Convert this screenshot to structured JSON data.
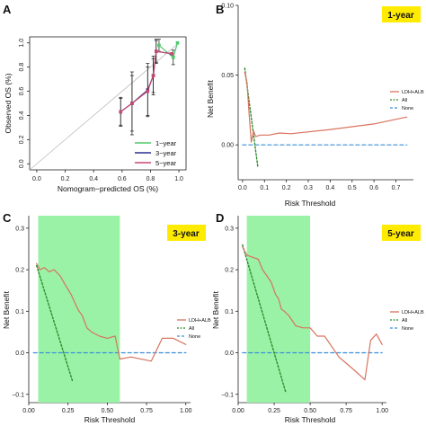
{
  "colors": {
    "ldh_alb": "#d9735f",
    "all": "#2e8b2e",
    "none": "#3a8fd9",
    "highlight": "#9af2a6",
    "year_box": "#ffeb00",
    "ideal_line": "#bdbdbd",
    "cal_1year": "#4fc86a",
    "cal_3year": "#2b2b8f",
    "cal_5year": "#c74a72"
  },
  "chart_data": [
    {
      "panel": "A",
      "type": "line",
      "xlabel": "Nomogram−predicted OS (%)",
      "ylabel": "Observed OS (%)",
      "xlim": [
        -0.05,
        1.05
      ],
      "ylim": [
        -0.05,
        1.05
      ],
      "xticks": [
        "0.0",
        "0.2",
        "0.4",
        "0.6",
        "0.8",
        "1.0"
      ],
      "yticks": [
        "0.0",
        "0.2",
        "0.4",
        "0.6",
        "0.8",
        "1.0"
      ],
      "legend_position": "bottom-right",
      "series": [
        {
          "name": "1−year",
          "x": [
            0.86,
            0.96,
            0.99
          ],
          "y": [
            0.98,
            0.88,
            1.0
          ],
          "err": [
            0.05,
            0.06,
            0.0
          ]
        },
        {
          "name": "3−year",
          "x": [
            0.59,
            0.67,
            0.78,
            0.82,
            0.84,
            0.95
          ],
          "y": [
            0.43,
            0.5,
            0.61,
            0.73,
            0.93,
            0.91
          ],
          "err": [
            0.12,
            0.23,
            0.22,
            0.14,
            0.09,
            0.0
          ]
        },
        {
          "name": "5−year",
          "x": [
            0.59,
            0.67,
            0.78,
            0.82,
            0.84,
            0.95
          ],
          "y": [
            0.43,
            0.5,
            0.6,
            0.73,
            0.93,
            0.91
          ],
          "err": [
            0.11,
            0.26,
            0.2,
            0.16,
            0.1,
            0.0
          ]
        }
      ]
    },
    {
      "panel": "B",
      "type": "line",
      "badge": "1-year",
      "xlabel": "Risk Threshold",
      "ylabel": "Net Benefit",
      "xlim": [
        -0.02,
        0.78
      ],
      "ylim": [
        -0.025,
        0.1
      ],
      "xticks": [
        0.0,
        0.1,
        0.2,
        0.3,
        0.4,
        0.5,
        0.6,
        0.7
      ],
      "xticklabels": [
        "0.0",
        "0.1",
        "0.2",
        "0.3",
        "0.4",
        "0.5",
        "0.6",
        "0.7"
      ],
      "yticks": [
        0.0,
        0.05,
        0.1
      ],
      "yticklabels": [
        "0.00",
        "0.05",
        "0.10"
      ],
      "legend_position": "right",
      "series": [
        {
          "name": "LDH+ALB",
          "x": [
            0.01,
            0.02,
            0.03,
            0.04,
            0.05,
            0.06,
            0.08,
            0.12,
            0.17,
            0.22,
            0.4,
            0.6,
            0.75
          ],
          "y": [
            0.052,
            0.045,
            0.022,
            0.002,
            0.01,
            0.006,
            0.007,
            0.007,
            0.0085,
            0.008,
            0.011,
            0.015,
            0.02
          ]
        },
        {
          "name": "All",
          "x": [
            0.01,
            0.07
          ],
          "y": [
            0.055,
            -0.016
          ]
        },
        {
          "name": "None",
          "x": [
            0.0,
            0.75
          ],
          "y": [
            0.0,
            0.0
          ]
        }
      ]
    },
    {
      "panel": "C",
      "type": "line",
      "badge": "3-year",
      "xlabel": "Risk Threshold",
      "ylabel": "Net Benefit",
      "xlim": [
        0.0,
        1.03
      ],
      "ylim": [
        -0.12,
        0.33
      ],
      "highlight_x": [
        0.06,
        0.58
      ],
      "xticks": [
        0.0,
        0.25,
        0.5,
        0.75,
        1.0
      ],
      "xticklabels": [
        "0.00",
        "0.25",
        "0.50",
        "0.75",
        "1.00"
      ],
      "yticks": [
        -0.1,
        0.0,
        0.1,
        0.2,
        0.3
      ],
      "yticklabels": [
        "−0.1",
        "0.0",
        "0.1",
        "0.2",
        "0.3"
      ],
      "legend_position": "right",
      "series": [
        {
          "name": "LDH+ALB",
          "x": [
            0.05,
            0.07,
            0.1,
            0.13,
            0.16,
            0.2,
            0.23,
            0.27,
            0.3,
            0.32,
            0.34,
            0.37,
            0.4,
            0.45,
            0.5,
            0.55,
            0.58,
            0.65,
            0.78,
            0.85,
            0.92,
            1.0
          ],
          "y": [
            0.215,
            0.2,
            0.205,
            0.195,
            0.2,
            0.185,
            0.165,
            0.14,
            0.115,
            0.1,
            0.09,
            0.06,
            0.05,
            0.04,
            0.035,
            0.04,
            -0.015,
            -0.01,
            -0.02,
            0.035,
            0.035,
            0.02
          ]
        },
        {
          "name": "All",
          "x": [
            0.05,
            0.28
          ],
          "y": [
            0.21,
            -0.07
          ]
        },
        {
          "name": "None",
          "x": [
            0.03,
            1.0
          ],
          "y": [
            0.0,
            0.0
          ]
        }
      ]
    },
    {
      "panel": "D",
      "type": "line",
      "badge": "5-year",
      "xlabel": "Risk Threshold",
      "ylabel": "Net Benefit",
      "xlim": [
        0.0,
        1.03
      ],
      "ylim": [
        -0.12,
        0.33
      ],
      "highlight_x": [
        0.06,
        0.5
      ],
      "xticks": [
        0.0,
        0.25,
        0.5,
        0.75,
        1.0
      ],
      "xticklabels": [
        "0.00",
        "0.25",
        "0.50",
        "0.75",
        "1.00"
      ],
      "yticks": [
        -0.1,
        0.0,
        0.1,
        0.2,
        0.3
      ],
      "yticklabels": [
        "−0.1",
        "0.0",
        "0.1",
        "0.2",
        "0.3"
      ],
      "legend_position": "right",
      "series": [
        {
          "name": "LDH+ALB",
          "x": [
            0.03,
            0.06,
            0.1,
            0.14,
            0.17,
            0.2,
            0.23,
            0.26,
            0.28,
            0.3,
            0.32,
            0.35,
            0.4,
            0.45,
            0.5,
            0.55,
            0.6,
            0.7,
            0.8,
            0.88,
            0.92,
            0.96,
            1.0
          ],
          "y": [
            0.255,
            0.235,
            0.23,
            0.225,
            0.2,
            0.185,
            0.17,
            0.14,
            0.13,
            0.105,
            0.1,
            0.09,
            0.065,
            0.06,
            0.06,
            0.04,
            0.04,
            -0.01,
            -0.04,
            -0.065,
            0.03,
            0.045,
            0.02
          ]
        },
        {
          "name": "All",
          "x": [
            0.03,
            0.33
          ],
          "y": [
            0.26,
            -0.095
          ]
        },
        {
          "name": "None",
          "x": [
            0.03,
            1.0
          ],
          "y": [
            0.0,
            0.0
          ]
        }
      ]
    }
  ]
}
